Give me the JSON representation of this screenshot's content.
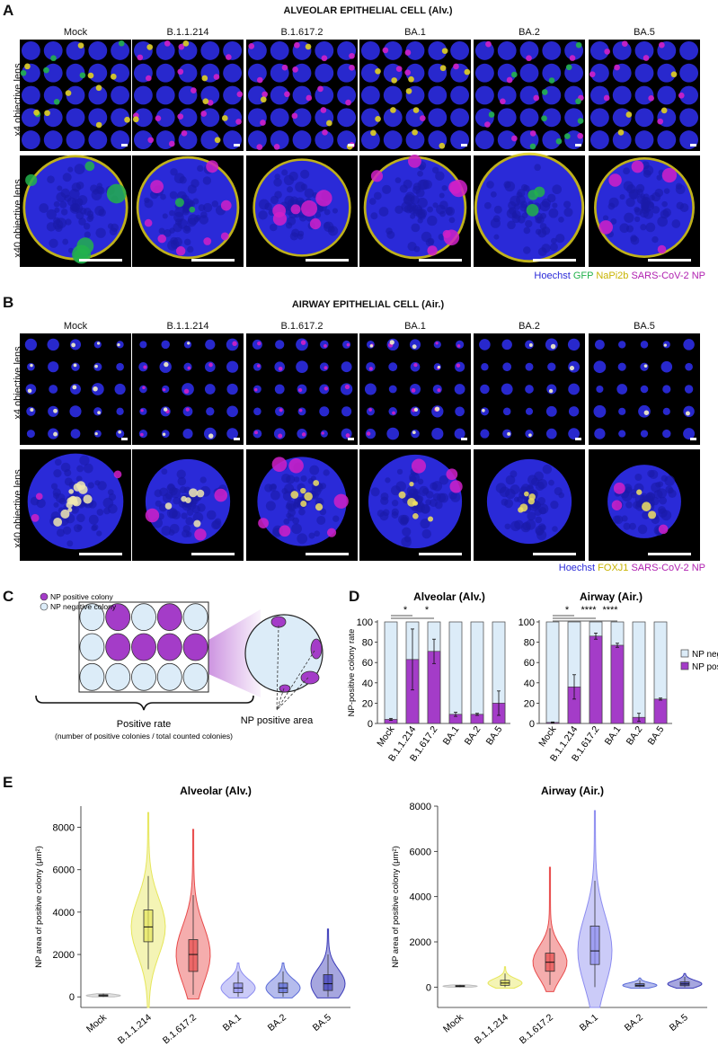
{
  "panel_a": {
    "letter": "A",
    "title": "ALVEOLAR EPITHELIAL CELL (Alv.)",
    "columns": [
      "Mock",
      "B.1.1.214",
      "B.1.617.2",
      "BA.1",
      "BA.2",
      "BA.5"
    ],
    "row_labels": [
      "x4 objective lens",
      "x40 objective lens"
    ],
    "legend": [
      {
        "text": "Hoechst",
        "color": "#2a2ad8"
      },
      {
        "text": "GFP",
        "color": "#22b14c"
      },
      {
        "text": "NaPi2b",
        "color": "#d8c21a"
      },
      {
        "text": "SARS-CoV-2 NP",
        "color": "#b020b0"
      }
    ]
  },
  "panel_b": {
    "letter": "B",
    "title": "AIRWAY EPITHELIAL CELL (Air.)",
    "columns": [
      "Mock",
      "B.1.1.214",
      "B.1.617.2",
      "BA.1",
      "BA.2",
      "BA.5"
    ],
    "row_labels": [
      "x4 objective lens",
      "x40 objective lens"
    ],
    "legend": [
      {
        "text": "Hoechst",
        "color": "#2a2ad8"
      },
      {
        "text": "FOXJ1",
        "color": "#d8c21a"
      },
      {
        "text": "SARS-CoV-2 NP",
        "color": "#b020b0"
      }
    ]
  },
  "panel_c": {
    "letter": "C",
    "legend_positive": "NP positive colony",
    "legend_negative": "NP negative colony",
    "positive_rate": "Positive rate",
    "positive_rate_def": "(number of positive colonies / total counted colonies)",
    "np_area": "NP positive area"
  },
  "panel_d": {
    "letter": "D",
    "legend_negative": "NP negative",
    "legend_positive": "NP positive"
  },
  "panel_e": {
    "letter": "E"
  },
  "colors": {
    "positive": "#a43cc8",
    "negative": "#dcecf8",
    "hoechst": "#2a2ad8",
    "gfp": "#22b14c",
    "yellow": "#e0d020",
    "magenta": "#d020c8"
  },
  "chart_data": [
    {
      "type": "bar",
      "title": "Alveolar (Alv.)",
      "ylabel": "NP-positive colony rate",
      "ylim": [
        0,
        100
      ],
      "yticks": [
        0,
        20,
        40,
        60,
        80,
        100
      ],
      "categories": [
        "Mock",
        "B.1.1.214",
        "B.1.617.2",
        "BA.1",
        "BA.2",
        "BA.5"
      ],
      "stacked": true,
      "series": [
        {
          "name": "NP positive",
          "values": [
            4,
            63,
            71,
            9,
            9,
            20
          ],
          "error": [
            1,
            30,
            12,
            2,
            1,
            12
          ]
        },
        {
          "name": "NP negative",
          "values": [
            96,
            37,
            29,
            91,
            91,
            80
          ]
        }
      ],
      "significance": [
        {
          "from": "Mock",
          "to": "B.1.1.214",
          "label": "*"
        },
        {
          "from": "Mock",
          "to": "B.1.617.2",
          "label": "*"
        }
      ]
    },
    {
      "type": "bar",
      "title": "Airway (Air.)",
      "ylabel": "",
      "ylim": [
        0,
        100
      ],
      "yticks": [
        0,
        20,
        40,
        60,
        80,
        100
      ],
      "categories": [
        "Mock",
        "B.1.1.214",
        "B.1.617.2",
        "BA.1",
        "BA.2",
        "BA.5"
      ],
      "stacked": true,
      "series": [
        {
          "name": "NP positive",
          "values": [
            1,
            36,
            86,
            77,
            6,
            24
          ],
          "error": [
            0.5,
            12,
            3,
            2,
            4,
            1
          ]
        },
        {
          "name": "NP negative",
          "values": [
            99,
            64,
            14,
            23,
            94,
            76
          ]
        }
      ],
      "significance": [
        {
          "from": "Mock",
          "to": "B.1.1.214",
          "label": "*"
        },
        {
          "from": "Mock",
          "to": "B.1.617.2",
          "label": "****"
        },
        {
          "from": "Mock",
          "to": "BA.1",
          "label": "****"
        }
      ]
    },
    {
      "type": "violin",
      "title": "Alveolar (Alv.)",
      "ylabel": "NP area of positive colony (μm²)",
      "ylim": [
        -500,
        9000
      ],
      "yticks": [
        0,
        2000,
        4000,
        6000,
        8000
      ],
      "categories": [
        "Mock",
        "B.1.1.214",
        "B.1.617.2",
        "BA.1",
        "BA.2",
        "BA.5"
      ],
      "colors": [
        "#bdbdbd",
        "#e6e65a",
        "#e84a4a",
        "#8c8cf0",
        "#5a6ad8",
        "#3a3ab8"
      ],
      "distributions": [
        {
          "min": 0,
          "q1": 30,
          "median": 60,
          "q3": 100,
          "max": 150,
          "whisker_low": 0,
          "whisker_high": 150
        },
        {
          "min": -500,
          "q1": 2600,
          "median": 3300,
          "q3": 4100,
          "max": 8700,
          "whisker_low": 1300,
          "whisker_high": 5700
        },
        {
          "min": -100,
          "q1": 1200,
          "median": 2000,
          "q3": 2700,
          "max": 7900,
          "whisker_low": 100,
          "whisker_high": 4800
        },
        {
          "min": -50,
          "q1": 200,
          "median": 420,
          "q3": 650,
          "max": 1600,
          "whisker_low": 0,
          "whisker_high": 1200
        },
        {
          "min": -50,
          "q1": 200,
          "median": 420,
          "q3": 650,
          "max": 1600,
          "whisker_low": 0,
          "whisker_high": 1200
        },
        {
          "min": -50,
          "q1": 300,
          "median": 620,
          "q3": 1050,
          "max": 3200,
          "whisker_low": 0,
          "whisker_high": 2000
        }
      ]
    },
    {
      "type": "violin",
      "title": "Airway (Air.)",
      "ylabel": "NP area of positive colony (μm²)",
      "ylim": [
        -900,
        8000
      ],
      "yticks": [
        0,
        2000,
        4000,
        6000,
        8000
      ],
      "categories": [
        "Mock",
        "B.1.1.214",
        "B.1.617.2",
        "BA.1",
        "BA.2",
        "BA.5"
      ],
      "colors": [
        "#bdbdbd",
        "#e6e65a",
        "#e84a4a",
        "#8c8cf0",
        "#5a6ad8",
        "#3a3ab8"
      ],
      "distributions": [
        {
          "min": 0,
          "q1": 20,
          "median": 40,
          "q3": 70,
          "max": 100,
          "whisker_low": 0,
          "whisker_high": 100
        },
        {
          "min": -50,
          "q1": 80,
          "median": 180,
          "q3": 300,
          "max": 900,
          "whisker_low": 0,
          "whisker_high": 600
        },
        {
          "min": -200,
          "q1": 700,
          "median": 1100,
          "q3": 1500,
          "max": 5300,
          "whisker_low": 100,
          "whisker_high": 2600
        },
        {
          "min": -900,
          "q1": 1000,
          "median": 1600,
          "q3": 2700,
          "max": 7800,
          "whisker_low": 0,
          "whisker_high": 4700
        },
        {
          "min": -50,
          "q1": 30,
          "median": 80,
          "q3": 150,
          "max": 400,
          "whisker_low": 0,
          "whisker_high": 300
        },
        {
          "min": -50,
          "q1": 60,
          "median": 140,
          "q3": 230,
          "max": 600,
          "whisker_low": 0,
          "whisker_high": 450
        }
      ]
    }
  ]
}
